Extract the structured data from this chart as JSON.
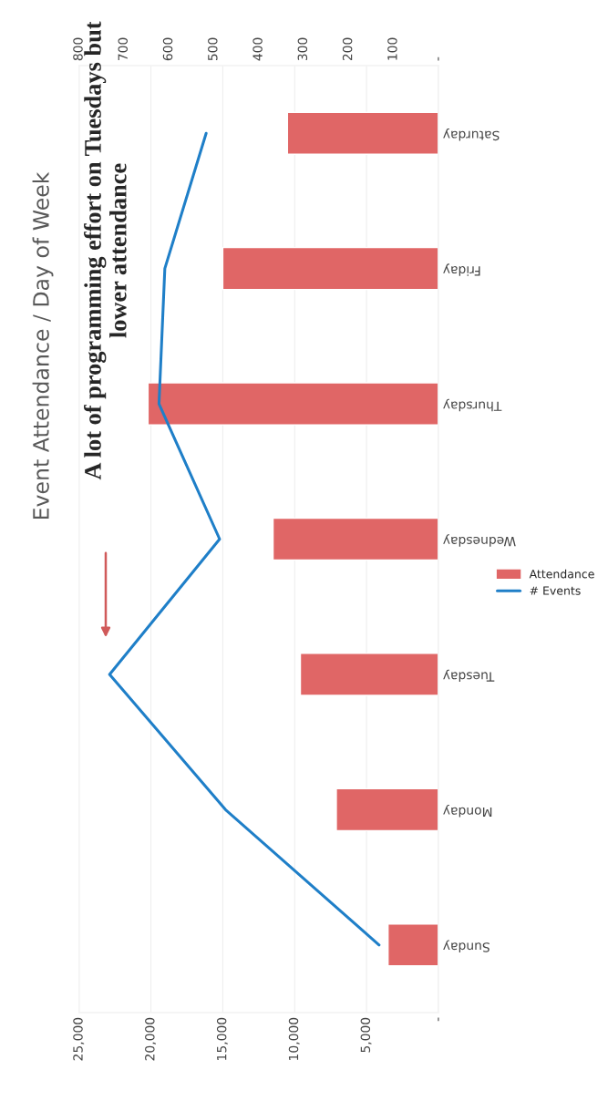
{
  "chart_data": {
    "type": "bar",
    "orientation": "horizontal",
    "title": "Event Attendance / Day of Week",
    "categories": [
      "Saturday",
      "Friday",
      "Thursday",
      "Wednesday",
      "Tuesday",
      "Monday",
      "Sunday"
    ],
    "series": [
      {
        "name": "Attendance",
        "color": "#e06666",
        "values": [
          10500,
          15000,
          20200,
          11500,
          9600,
          7100,
          3500
        ]
      },
      {
        "name": "# Events",
        "type": "line",
        "axis": "x2",
        "color": "#1f7fc8",
        "values": [
          517,
          609,
          622,
          487,
          732,
          474,
          132
        ]
      }
    ],
    "xlim": [
      25000,
      0
    ],
    "xticks": [
      {
        "value": 25000,
        "label": "25,000"
      },
      {
        "value": 20000,
        "label": "20,000"
      },
      {
        "value": 15000,
        "label": "15,000"
      },
      {
        "value": 10000,
        "label": "10,000"
      },
      {
        "value": 5000,
        "label": "5,000"
      },
      {
        "value": 0,
        "label": "-"
      }
    ],
    "x2lim": [
      800,
      0
    ],
    "x2ticks": [
      800,
      700,
      600,
      500,
      400,
      300,
      200,
      100,
      {
        "value": 0,
        "label": "-"
      }
    ],
    "annotations": [
      "A lot of programming effort on Tuesdays but lower attendance"
    ],
    "grid": "x",
    "legend": "right",
    "line_style": "solid",
    "marker": "none"
  }
}
